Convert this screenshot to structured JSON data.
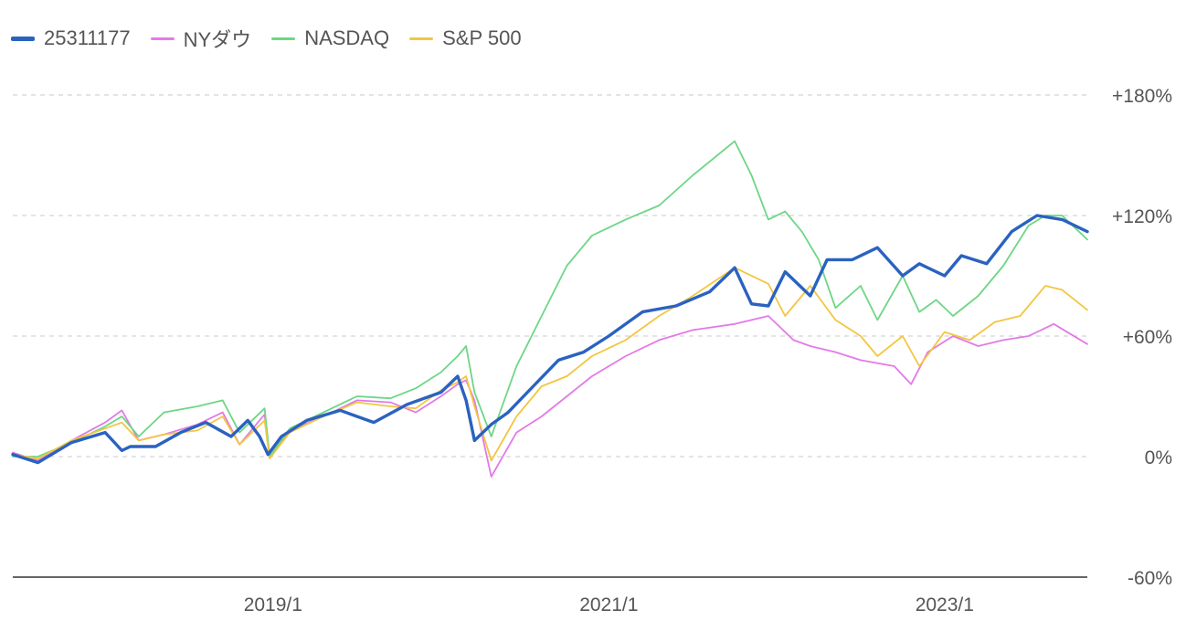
{
  "chart_data": {
    "type": "line",
    "title": "",
    "xlabel": "",
    "ylabel": "",
    "ylim": [
      -60,
      180
    ],
    "yticks": [
      180,
      120,
      60,
      0,
      -60
    ],
    "ytick_labels": [
      "+180%",
      "+120%",
      "+60%",
      "0%",
      "-60%"
    ],
    "xticks": [
      2019.0,
      2021.0,
      2023.0
    ],
    "xtick_labels": [
      "2019/1",
      "2021/1",
      "2023/1"
    ],
    "xlim": [
      2017.45,
      2023.85
    ],
    "grid": "horizontal-dashed",
    "legend_position": "top-left",
    "series": [
      {
        "name": "25311177",
        "color": "#2a62c0",
        "x": [
          2017.45,
          2017.6,
          2017.8,
          2018.0,
          2018.1,
          2018.15,
          2018.3,
          2018.45,
          2018.6,
          2018.75,
          2018.85,
          2018.92,
          2018.97,
          2019.05,
          2019.2,
          2019.4,
          2019.6,
          2019.8,
          2020.0,
          2020.1,
          2020.15,
          2020.2,
          2020.3,
          2020.4,
          2020.55,
          2020.7,
          2020.85,
          2021.0,
          2021.2,
          2021.4,
          2021.6,
          2021.75,
          2021.85,
          2021.95,
          2022.05,
          2022.2,
          2022.3,
          2022.45,
          2022.6,
          2022.75,
          2022.85,
          2023.0,
          2023.1,
          2023.25,
          2023.4,
          2023.55,
          2023.7,
          2023.85
        ],
        "values": [
          1,
          -3,
          7,
          12,
          3,
          5,
          5,
          12,
          17,
          10,
          18,
          10,
          1,
          10,
          18,
          23,
          17,
          26,
          32,
          40,
          28,
          8,
          16,
          22,
          35,
          48,
          52,
          60,
          72,
          75,
          82,
          94,
          76,
          75,
          92,
          80,
          98,
          98,
          104,
          90,
          96,
          90,
          100,
          96,
          112,
          120,
          118,
          112
        ]
      },
      {
        "name": "NYダウ",
        "color": "#e27ae8",
        "x": [
          2017.45,
          2017.6,
          2017.8,
          2018.0,
          2018.1,
          2018.2,
          2018.35,
          2018.55,
          2018.7,
          2018.8,
          2018.95,
          2018.98,
          2019.1,
          2019.3,
          2019.5,
          2019.7,
          2019.85,
          2020.0,
          2020.1,
          2020.15,
          2020.2,
          2020.3,
          2020.45,
          2020.6,
          2020.75,
          2020.9,
          2021.1,
          2021.3,
          2021.5,
          2021.75,
          2021.95,
          2022.1,
          2022.2,
          2022.35,
          2022.5,
          2022.7,
          2022.8,
          2022.9,
          2023.05,
          2023.2,
          2023.35,
          2023.5,
          2023.65,
          2023.85
        ],
        "values": [
          2,
          -2,
          8,
          17,
          23,
          8,
          11,
          16,
          22,
          6,
          21,
          0,
          13,
          20,
          28,
          27,
          22,
          30,
          36,
          38,
          28,
          -10,
          12,
          20,
          30,
          40,
          50,
          58,
          63,
          66,
          70,
          58,
          55,
          52,
          48,
          45,
          36,
          52,
          60,
          55,
          58,
          60,
          66,
          56
        ]
      },
      {
        "name": "NASDAQ",
        "color": "#6dd685",
        "x": [
          2017.45,
          2017.6,
          2017.8,
          2018.0,
          2018.1,
          2018.2,
          2018.35,
          2018.55,
          2018.7,
          2018.8,
          2018.95,
          2018.98,
          2019.1,
          2019.3,
          2019.5,
          2019.7,
          2019.85,
          2020.0,
          2020.1,
          2020.15,
          2020.2,
          2020.3,
          2020.45,
          2020.6,
          2020.75,
          2020.9,
          2021.1,
          2021.3,
          2021.5,
          2021.75,
          2021.85,
          2021.95,
          2022.05,
          2022.15,
          2022.25,
          2022.35,
          2022.5,
          2022.6,
          2022.75,
          2022.85,
          2022.95,
          2023.05,
          2023.2,
          2023.35,
          2023.5,
          2023.6,
          2023.7,
          2023.85
        ],
        "values": [
          0,
          0,
          7,
          15,
          20,
          10,
          22,
          25,
          28,
          12,
          24,
          0,
          14,
          22,
          30,
          29,
          34,
          42,
          50,
          55,
          32,
          10,
          45,
          70,
          95,
          110,
          118,
          125,
          140,
          157,
          140,
          118,
          122,
          112,
          98,
          74,
          85,
          68,
          90,
          72,
          78,
          70,
          80,
          95,
          115,
          120,
          120,
          108
        ]
      },
      {
        "name": "S&P 500",
        "color": "#f2c641",
        "x": [
          2017.45,
          2017.6,
          2017.8,
          2018.0,
          2018.1,
          2018.2,
          2018.35,
          2018.55,
          2018.7,
          2018.8,
          2018.95,
          2018.98,
          2019.1,
          2019.3,
          2019.5,
          2019.7,
          2019.85,
          2020.0,
          2020.1,
          2020.15,
          2020.2,
          2020.3,
          2020.45,
          2020.6,
          2020.75,
          2020.9,
          2021.1,
          2021.3,
          2021.5,
          2021.75,
          2021.95,
          2022.05,
          2022.2,
          2022.35,
          2022.5,
          2022.6,
          2022.75,
          2022.85,
          2023.0,
          2023.15,
          2023.3,
          2023.45,
          2023.6,
          2023.7,
          2023.85
        ],
        "values": [
          1,
          -1,
          8,
          14,
          17,
          8,
          11,
          13,
          20,
          6,
          18,
          -1,
          12,
          20,
          27,
          25,
          24,
          33,
          37,
          40,
          25,
          -2,
          20,
          35,
          40,
          50,
          58,
          70,
          80,
          94,
          86,
          70,
          85,
          68,
          60,
          50,
          60,
          45,
          62,
          58,
          67,
          70,
          85,
          83,
          73
        ]
      }
    ]
  }
}
